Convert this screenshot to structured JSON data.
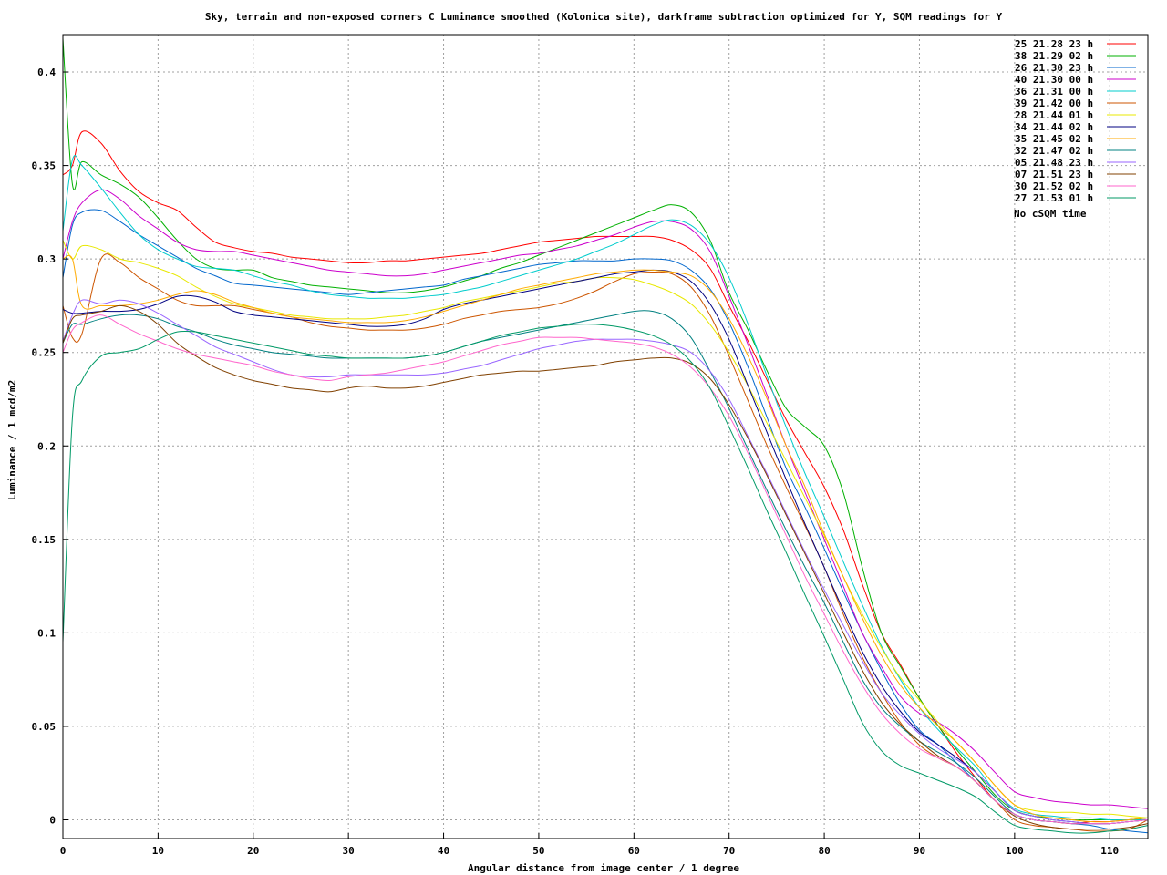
{
  "chart_data": {
    "type": "line",
    "title": "Sky, terrain and non-exposed corners C Luminance smoothed  (Kolonica site), darkframe subtraction optimized for Y, SQM readings for Y",
    "xlabel": "Angular distance from image center / 1 degree",
    "ylabel": "Luminance / 1 mcd/m2",
    "xlim": [
      0,
      114
    ],
    "ylim": [
      -0.01,
      0.42
    ],
    "xticks": [
      0,
      10,
      20,
      30,
      40,
      50,
      60,
      70,
      80,
      90,
      100,
      110
    ],
    "yticks": [
      0,
      0.05,
      0.1,
      0.15,
      0.2,
      0.25,
      0.3,
      0.35,
      0.4
    ],
    "grid": true,
    "legend_position": "top-right",
    "legend_footer": "No cSQM  time",
    "x": [
      0,
      1,
      2,
      4,
      6,
      8,
      10,
      12,
      14,
      16,
      18,
      20,
      22,
      24,
      26,
      28,
      30,
      32,
      34,
      36,
      38,
      40,
      42,
      44,
      46,
      48,
      50,
      52,
      54,
      56,
      58,
      60,
      62,
      64,
      66,
      68,
      70,
      72,
      74,
      76,
      78,
      80,
      82,
      84,
      86,
      88,
      90,
      92,
      94,
      96,
      98,
      100,
      102,
      104,
      106,
      108,
      110,
      112,
      114
    ],
    "series": [
      {
        "name": "25 21.28 23 h",
        "color": "#ff0000",
        "values": [
          0.345,
          0.35,
          0.368,
          0.362,
          0.347,
          0.336,
          0.33,
          0.326,
          0.317,
          0.309,
          0.306,
          0.304,
          0.303,
          0.301,
          0.3,
          0.299,
          0.298,
          0.298,
          0.299,
          0.299,
          0.3,
          0.301,
          0.302,
          0.303,
          0.305,
          0.307,
          0.309,
          0.31,
          0.311,
          0.312,
          0.312,
          0.312,
          0.312,
          0.31,
          0.305,
          0.295,
          0.275,
          0.256,
          0.235,
          0.214,
          0.196,
          0.178,
          0.155,
          0.126,
          0.1,
          0.083,
          0.065,
          0.05,
          0.035,
          0.022,
          0.01,
          0.003,
          0.0,
          -0.001,
          -0.002,
          -0.001,
          -0.001,
          0.0,
          0.001
        ]
      },
      {
        "name": "38 21.29 02 h",
        "color": "#00b000",
        "values": [
          0.418,
          0.34,
          0.352,
          0.345,
          0.34,
          0.333,
          0.322,
          0.31,
          0.3,
          0.295,
          0.294,
          0.294,
          0.29,
          0.288,
          0.286,
          0.285,
          0.284,
          0.283,
          0.282,
          0.282,
          0.283,
          0.285,
          0.288,
          0.291,
          0.295,
          0.298,
          0.302,
          0.306,
          0.31,
          0.314,
          0.318,
          0.322,
          0.326,
          0.329,
          0.325,
          0.31,
          0.282,
          0.262,
          0.24,
          0.22,
          0.21,
          0.2,
          0.175,
          0.135,
          0.1,
          0.082,
          0.065,
          0.05,
          0.037,
          0.025,
          0.013,
          0.005,
          0.002,
          0.001,
          0.0,
          0.0,
          0.0,
          0.0,
          0.001
        ]
      },
      {
        "name": "26 21.30 23 h",
        "color": "#0066cc",
        "values": [
          0.29,
          0.318,
          0.325,
          0.326,
          0.32,
          0.313,
          0.307,
          0.301,
          0.295,
          0.291,
          0.287,
          0.286,
          0.285,
          0.284,
          0.283,
          0.282,
          0.281,
          0.282,
          0.283,
          0.284,
          0.285,
          0.286,
          0.289,
          0.291,
          0.293,
          0.295,
          0.297,
          0.298,
          0.299,
          0.299,
          0.299,
          0.3,
          0.3,
          0.299,
          0.294,
          0.284,
          0.266,
          0.242,
          0.215,
          0.188,
          0.167,
          0.145,
          0.122,
          0.1,
          0.08,
          0.062,
          0.048,
          0.04,
          0.03,
          0.02,
          0.01,
          0.003,
          0.0,
          -0.001,
          -0.002,
          -0.003,
          -0.005,
          -0.006,
          -0.007
        ]
      },
      {
        "name": "40 21.30 00 h",
        "color": "#cc00cc",
        "values": [
          0.3,
          0.32,
          0.33,
          0.337,
          0.332,
          0.323,
          0.316,
          0.309,
          0.305,
          0.304,
          0.304,
          0.302,
          0.3,
          0.298,
          0.296,
          0.294,
          0.293,
          0.292,
          0.291,
          0.291,
          0.292,
          0.294,
          0.296,
          0.298,
          0.3,
          0.302,
          0.303,
          0.305,
          0.307,
          0.31,
          0.313,
          0.317,
          0.32,
          0.32,
          0.316,
          0.304,
          0.28,
          0.254,
          0.227,
          0.2,
          0.175,
          0.15,
          0.125,
          0.1,
          0.082,
          0.066,
          0.057,
          0.052,
          0.045,
          0.036,
          0.025,
          0.015,
          0.012,
          0.01,
          0.009,
          0.008,
          0.008,
          0.007,
          0.006
        ]
      },
      {
        "name": "36 21.31 00 h",
        "color": "#00cccc",
        "values": [
          0.315,
          0.353,
          0.35,
          0.338,
          0.325,
          0.313,
          0.305,
          0.3,
          0.296,
          0.295,
          0.294,
          0.291,
          0.288,
          0.286,
          0.283,
          0.281,
          0.28,
          0.279,
          0.279,
          0.279,
          0.28,
          0.281,
          0.283,
          0.285,
          0.288,
          0.291,
          0.294,
          0.297,
          0.3,
          0.304,
          0.308,
          0.313,
          0.318,
          0.321,
          0.318,
          0.308,
          0.29,
          0.265,
          0.237,
          0.21,
          0.185,
          0.162,
          0.138,
          0.115,
          0.093,
          0.075,
          0.06,
          0.048,
          0.038,
          0.028,
          0.015,
          0.006,
          0.003,
          0.002,
          0.001,
          0.001,
          0.0,
          0.0,
          0.0
        ]
      },
      {
        "name": "39 21.42 00 h",
        "color": "#cc5500",
        "values": [
          0.275,
          0.258,
          0.26,
          0.3,
          0.298,
          0.29,
          0.284,
          0.278,
          0.275,
          0.275,
          0.275,
          0.273,
          0.271,
          0.269,
          0.266,
          0.264,
          0.263,
          0.262,
          0.262,
          0.262,
          0.263,
          0.265,
          0.268,
          0.27,
          0.272,
          0.273,
          0.274,
          0.276,
          0.279,
          0.283,
          0.288,
          0.292,
          0.293,
          0.292,
          0.285,
          0.27,
          0.248,
          0.224,
          0.2,
          0.178,
          0.157,
          0.135,
          0.11,
          0.087,
          0.068,
          0.052,
          0.04,
          0.033,
          0.028,
          0.02,
          0.01,
          0.0,
          -0.003,
          -0.004,
          -0.005,
          -0.006,
          -0.006,
          -0.005,
          0.0
        ]
      },
      {
        "name": "28 21.44 01 h",
        "color": "#e8e800",
        "values": [
          0.31,
          0.3,
          0.307,
          0.305,
          0.3,
          0.298,
          0.295,
          0.291,
          0.285,
          0.28,
          0.276,
          0.274,
          0.272,
          0.27,
          0.269,
          0.268,
          0.268,
          0.268,
          0.269,
          0.27,
          0.272,
          0.274,
          0.277,
          0.279,
          0.281,
          0.283,
          0.285,
          0.287,
          0.288,
          0.29,
          0.29,
          0.289,
          0.286,
          0.282,
          0.276,
          0.265,
          0.25,
          0.232,
          0.212,
          0.192,
          0.172,
          0.152,
          0.13,
          0.11,
          0.092,
          0.076,
          0.064,
          0.052,
          0.041,
          0.03,
          0.018,
          0.008,
          0.005,
          0.004,
          0.004,
          0.003,
          0.003,
          0.002,
          0.001
        ]
      },
      {
        "name": "34 21.44 02 h",
        "color": "#000080",
        "values": [
          0.273,
          0.271,
          0.271,
          0.272,
          0.272,
          0.273,
          0.276,
          0.28,
          0.28,
          0.277,
          0.272,
          0.27,
          0.269,
          0.268,
          0.267,
          0.266,
          0.265,
          0.264,
          0.264,
          0.265,
          0.268,
          0.273,
          0.276,
          0.278,
          0.28,
          0.282,
          0.284,
          0.286,
          0.288,
          0.29,
          0.292,
          0.293,
          0.294,
          0.293,
          0.288,
          0.276,
          0.257,
          0.232,
          0.207,
          0.182,
          0.158,
          0.135,
          0.112,
          0.09,
          0.072,
          0.058,
          0.047,
          0.04,
          0.033,
          0.025,
          0.015,
          0.005,
          0.002,
          0.0,
          -0.001,
          -0.002,
          -0.002,
          -0.001,
          0.0
        ]
      },
      {
        "name": "35 21.45 02 h",
        "color": "#ffaa00",
        "values": [
          0.3,
          0.3,
          0.275,
          0.275,
          0.275,
          0.276,
          0.278,
          0.281,
          0.283,
          0.281,
          0.277,
          0.274,
          0.271,
          0.269,
          0.268,
          0.267,
          0.266,
          0.266,
          0.266,
          0.267,
          0.269,
          0.272,
          0.275,
          0.278,
          0.281,
          0.284,
          0.286,
          0.288,
          0.29,
          0.292,
          0.293,
          0.294,
          0.294,
          0.293,
          0.291,
          0.283,
          0.268,
          0.248,
          0.225,
          0.2,
          0.178,
          0.153,
          0.13,
          0.108,
          0.088,
          0.072,
          0.06,
          0.05,
          0.041,
          0.03,
          0.018,
          0.008,
          0.003,
          0.001,
          0.0,
          -0.001,
          -0.001,
          0.0,
          0.001
        ]
      },
      {
        "name": "32 21.47 02 h",
        "color": "#008080",
        "values": [
          0.255,
          0.265,
          0.265,
          0.268,
          0.27,
          0.27,
          0.268,
          0.264,
          0.261,
          0.257,
          0.254,
          0.252,
          0.25,
          0.249,
          0.248,
          0.247,
          0.247,
          0.247,
          0.247,
          0.247,
          0.248,
          0.25,
          0.253,
          0.256,
          0.258,
          0.26,
          0.262,
          0.264,
          0.266,
          0.268,
          0.27,
          0.272,
          0.272,
          0.268,
          0.258,
          0.24,
          0.22,
          0.198,
          0.176,
          0.155,
          0.135,
          0.116,
          0.095,
          0.075,
          0.06,
          0.05,
          0.042,
          0.036,
          0.03,
          0.022,
          0.012,
          0.003,
          0.0,
          -0.001,
          -0.002,
          -0.002,
          -0.002,
          -0.001,
          0.0
        ]
      },
      {
        "name": "05 21.48 23 h",
        "color": "#9966ff",
        "values": [
          0.256,
          0.27,
          0.278,
          0.276,
          0.278,
          0.276,
          0.271,
          0.265,
          0.259,
          0.253,
          0.249,
          0.245,
          0.241,
          0.238,
          0.237,
          0.237,
          0.238,
          0.238,
          0.238,
          0.238,
          0.238,
          0.239,
          0.241,
          0.243,
          0.246,
          0.249,
          0.252,
          0.254,
          0.256,
          0.257,
          0.257,
          0.257,
          0.256,
          0.254,
          0.25,
          0.24,
          0.225,
          0.205,
          0.185,
          0.164,
          0.143,
          0.123,
          0.104,
          0.085,
          0.068,
          0.056,
          0.046,
          0.038,
          0.032,
          0.025,
          0.015,
          0.005,
          0.002,
          0.0,
          -0.001,
          -0.002,
          -0.002,
          -0.001,
          0.0
        ]
      },
      {
        "name": "07 21.51 23 h",
        "color": "#804000",
        "values": [
          0.255,
          0.268,
          0.27,
          0.272,
          0.275,
          0.272,
          0.265,
          0.255,
          0.248,
          0.242,
          0.238,
          0.235,
          0.233,
          0.231,
          0.23,
          0.229,
          0.231,
          0.232,
          0.231,
          0.231,
          0.232,
          0.234,
          0.236,
          0.238,
          0.239,
          0.24,
          0.24,
          0.241,
          0.242,
          0.243,
          0.245,
          0.246,
          0.247,
          0.247,
          0.244,
          0.236,
          0.222,
          0.204,
          0.184,
          0.163,
          0.142,
          0.121,
          0.1,
          0.08,
          0.063,
          0.051,
          0.042,
          0.034,
          0.028,
          0.02,
          0.01,
          0.002,
          -0.002,
          -0.004,
          -0.005,
          -0.005,
          -0.005,
          -0.004,
          -0.002
        ]
      },
      {
        "name": "30 21.52 02 h",
        "color": "#ff66cc",
        "values": [
          0.25,
          0.262,
          0.266,
          0.27,
          0.265,
          0.26,
          0.256,
          0.252,
          0.249,
          0.247,
          0.245,
          0.243,
          0.24,
          0.238,
          0.236,
          0.235,
          0.237,
          0.238,
          0.239,
          0.241,
          0.243,
          0.245,
          0.248,
          0.251,
          0.254,
          0.256,
          0.258,
          0.258,
          0.258,
          0.257,
          0.256,
          0.255,
          0.253,
          0.249,
          0.242,
          0.231,
          0.216,
          0.196,
          0.174,
          0.152,
          0.13,
          0.11,
          0.09,
          0.072,
          0.057,
          0.046,
          0.038,
          0.033,
          0.028,
          0.02,
          0.01,
          0.003,
          0.0,
          -0.001,
          -0.002,
          -0.002,
          -0.002,
          -0.001,
          0.0
        ]
      },
      {
        "name": "27 21.53 01 h",
        "color": "#009966",
        "values": [
          0.095,
          0.215,
          0.235,
          0.248,
          0.25,
          0.252,
          0.257,
          0.261,
          0.261,
          0.259,
          0.257,
          0.255,
          0.253,
          0.251,
          0.249,
          0.248,
          0.247,
          0.247,
          0.247,
          0.247,
          0.248,
          0.25,
          0.253,
          0.256,
          0.259,
          0.261,
          0.263,
          0.264,
          0.265,
          0.265,
          0.264,
          0.262,
          0.259,
          0.254,
          0.245,
          0.231,
          0.21,
          0.188,
          0.165,
          0.143,
          0.12,
          0.098,
          0.075,
          0.052,
          0.037,
          0.029,
          0.025,
          0.021,
          0.017,
          0.012,
          0.004,
          -0.003,
          -0.005,
          -0.006,
          -0.007,
          -0.007,
          -0.006,
          -0.005,
          -0.003
        ]
      }
    ]
  }
}
